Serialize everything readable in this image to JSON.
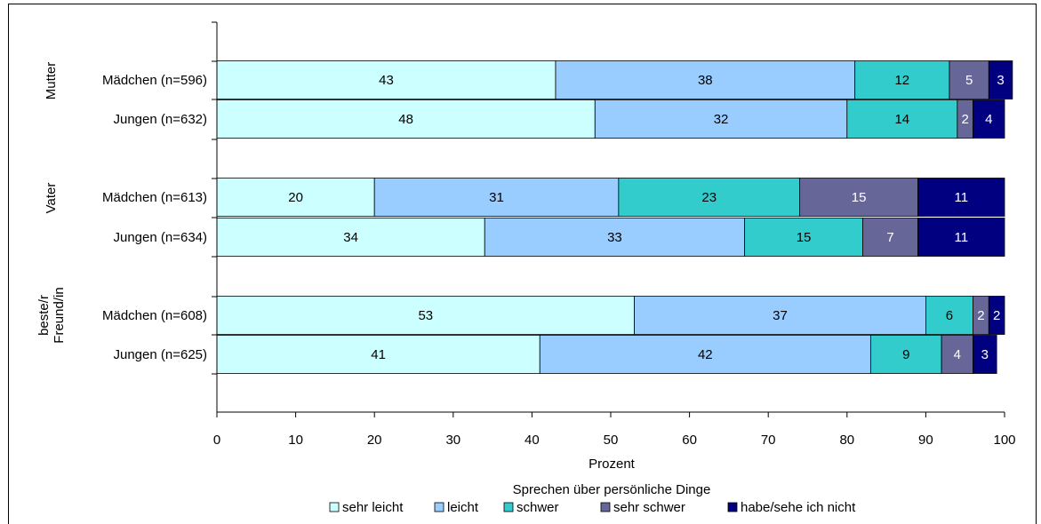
{
  "chart_data": {
    "type": "bar",
    "orientation": "horizontal",
    "stacked": true,
    "xlabel": "Prozent",
    "xlim": [
      0,
      100
    ],
    "xticks": [
      "0",
      "10",
      "20",
      "30",
      "40",
      "50",
      "60",
      "70",
      "80",
      "90",
      "100"
    ],
    "legend_title": "Sprechen über persönliche Dinge",
    "legend_placement": "bottom-center",
    "grid": false,
    "groups": [
      {
        "label": "Mutter",
        "rows": [
          {
            "label": "Mädchen (n=596)",
            "values": [
              43,
              38,
              12,
              5,
              3
            ]
          },
          {
            "label": "Jungen (n=632)",
            "values": [
              48,
              32,
              14,
              2,
              4
            ]
          }
        ]
      },
      {
        "label": "Vater",
        "rows": [
          {
            "label": "Mädchen (n=613)",
            "values": [
              20,
              31,
              23,
              15,
              11
            ]
          },
          {
            "label": "Jungen (n=634)",
            "values": [
              34,
              33,
              15,
              7,
              11
            ]
          }
        ]
      },
      {
        "label": "beste/r Freund/in",
        "label_lines": [
          "beste/r",
          "Freund/in"
        ],
        "rows": [
          {
            "label": "Mädchen (n=608)",
            "values": [
              53,
              37,
              6,
              2,
              2
            ]
          },
          {
            "label": "Jungen (n=625)",
            "values": [
              41,
              42,
              9,
              4,
              3
            ]
          }
        ]
      }
    ],
    "series": [
      {
        "name": "sehr leicht",
        "color": "#ccffff",
        "label_color": "#000000"
      },
      {
        "name": "leicht",
        "color": "#99ccff",
        "label_color": "#000000"
      },
      {
        "name": "schwer",
        "color": "#33cccc",
        "label_color": "#000000"
      },
      {
        "name": "sehr schwer",
        "color": "#666699",
        "label_color": "#ffffff"
      },
      {
        "name": "habe/sehe ich nicht",
        "color": "#000080",
        "label_color": "#ffffff"
      }
    ]
  }
}
